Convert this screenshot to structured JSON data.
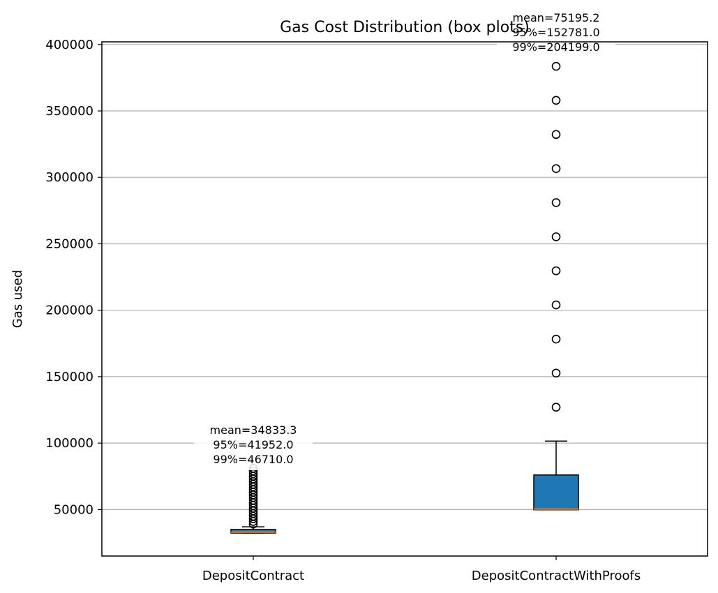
{
  "chart_data": {
    "type": "box",
    "title": "Gas Cost Distribution (box plots)",
    "xlabel": "",
    "ylabel": "Gas used",
    "ylim": [
      15000,
      402000
    ],
    "yticks": [
      50000,
      100000,
      150000,
      200000,
      250000,
      300000,
      350000,
      400000
    ],
    "grid": "y",
    "box_color": "#1f77b4",
    "median_color": "#ff7f0e",
    "categories": [
      "DepositContract",
      "DepositContractWithProofs"
    ],
    "boxes": [
      {
        "category": "DepositContract",
        "whisker_low": 32300,
        "q1": 32300,
        "median": 33000,
        "q3": 35000,
        "whisker_high": 37000,
        "outliers": [
          39000,
          41000,
          43000,
          45000,
          47000,
          49000,
          51000,
          53000,
          55000,
          57000,
          59000,
          61000,
          63000,
          65000,
          67000,
          69000,
          71000,
          73000,
          75000,
          77000,
          79000,
          81000
        ],
        "annotation": [
          "mean=34833.3",
          "95%=41952.0",
          "99%=46710.0"
        ]
      },
      {
        "category": "DepositContractWithProofs",
        "whisker_low": 49800,
        "q1": 49800,
        "median": 50300,
        "q3": 76000,
        "whisker_high": 101500,
        "outliers": [
          127000,
          152700,
          178300,
          204000,
          229700,
          255300,
          281000,
          306600,
          332300,
          358000,
          383600
        ],
        "annotation": [
          "mean=75195.2",
          "95%=152781.0",
          "99%=204199.0"
        ]
      }
    ]
  }
}
